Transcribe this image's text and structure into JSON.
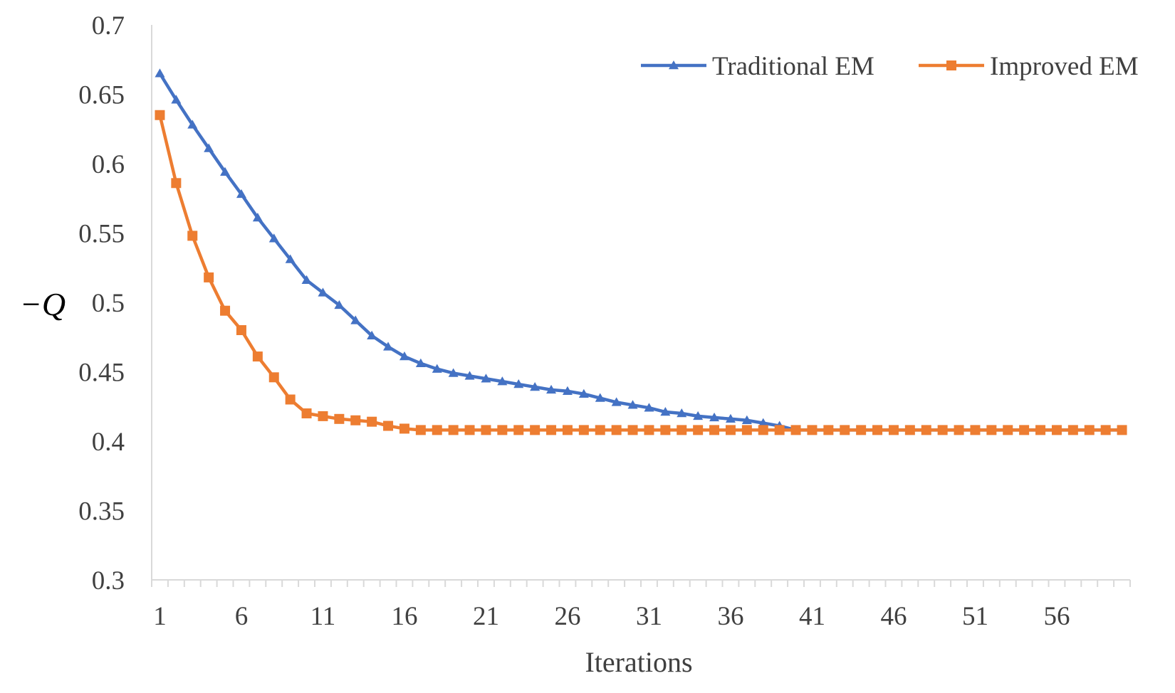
{
  "chart_data": {
    "type": "line",
    "title": "",
    "xlabel": "Iterations",
    "ylabel": "−Q",
    "x": [
      1,
      2,
      3,
      4,
      5,
      6,
      7,
      8,
      9,
      10,
      11,
      12,
      13,
      14,
      15,
      16,
      17,
      18,
      19,
      20,
      21,
      22,
      23,
      24,
      25,
      26,
      27,
      28,
      29,
      30,
      31,
      32,
      33,
      34,
      35,
      36,
      37,
      38,
      39,
      40,
      41,
      42,
      43,
      44,
      45,
      46,
      47,
      48,
      49,
      50,
      51,
      52,
      53,
      54,
      55,
      56,
      57,
      58,
      59,
      60
    ],
    "xticks": [
      1,
      6,
      11,
      16,
      21,
      26,
      31,
      36,
      41,
      46,
      51,
      56
    ],
    "xtick_labels": [
      "1",
      "6",
      "11",
      "16",
      "21",
      "26",
      "31",
      "36",
      "41",
      "46",
      "51",
      "56"
    ],
    "ylim": [
      0.3,
      0.7
    ],
    "yticks": [
      0.3,
      0.35,
      0.4,
      0.45,
      0.5,
      0.55,
      0.6,
      0.65,
      0.7
    ],
    "ytick_labels": [
      "0.3",
      "0.35",
      "0.4",
      "0.45",
      "0.5",
      "0.55",
      "0.6",
      "0.65",
      "0.7"
    ],
    "grid": false,
    "legend_position": "top-right",
    "series": [
      {
        "name": "Traditional EM",
        "color": "#4472C4",
        "marker": "triangle",
        "values": [
          0.665,
          0.646,
          0.628,
          0.611,
          0.594,
          0.578,
          0.561,
          0.546,
          0.531,
          0.516,
          0.507,
          0.498,
          0.487,
          0.476,
          0.468,
          0.461,
          0.456,
          0.452,
          0.449,
          0.447,
          0.445,
          0.443,
          0.441,
          0.439,
          0.437,
          0.436,
          0.434,
          0.431,
          0.428,
          0.426,
          0.424,
          0.421,
          0.42,
          0.418,
          0.417,
          0.416,
          0.415,
          0.413,
          0.411,
          0.408,
          0.408,
          0.408,
          0.408,
          0.408,
          0.408,
          0.408,
          0.408,
          0.408,
          0.408,
          0.408,
          0.408,
          0.408,
          0.408,
          0.408,
          0.408,
          0.408,
          0.408,
          0.408,
          0.408,
          0.408
        ]
      },
      {
        "name": "Improved EM",
        "color": "#ED7D31",
        "marker": "square",
        "values": [
          0.635,
          0.586,
          0.548,
          0.518,
          0.494,
          0.48,
          0.461,
          0.446,
          0.43,
          0.42,
          0.418,
          0.416,
          0.415,
          0.414,
          0.411,
          0.409,
          0.408,
          0.408,
          0.408,
          0.408,
          0.408,
          0.408,
          0.408,
          0.408,
          0.408,
          0.408,
          0.408,
          0.408,
          0.408,
          0.408,
          0.408,
          0.408,
          0.408,
          0.408,
          0.408,
          0.408,
          0.408,
          0.408,
          0.408,
          0.408,
          0.408,
          0.408,
          0.408,
          0.408,
          0.408,
          0.408,
          0.408,
          0.408,
          0.408,
          0.408,
          0.408,
          0.408,
          0.408,
          0.408,
          0.408,
          0.408,
          0.408,
          0.408,
          0.408,
          0.408
        ]
      }
    ]
  }
}
